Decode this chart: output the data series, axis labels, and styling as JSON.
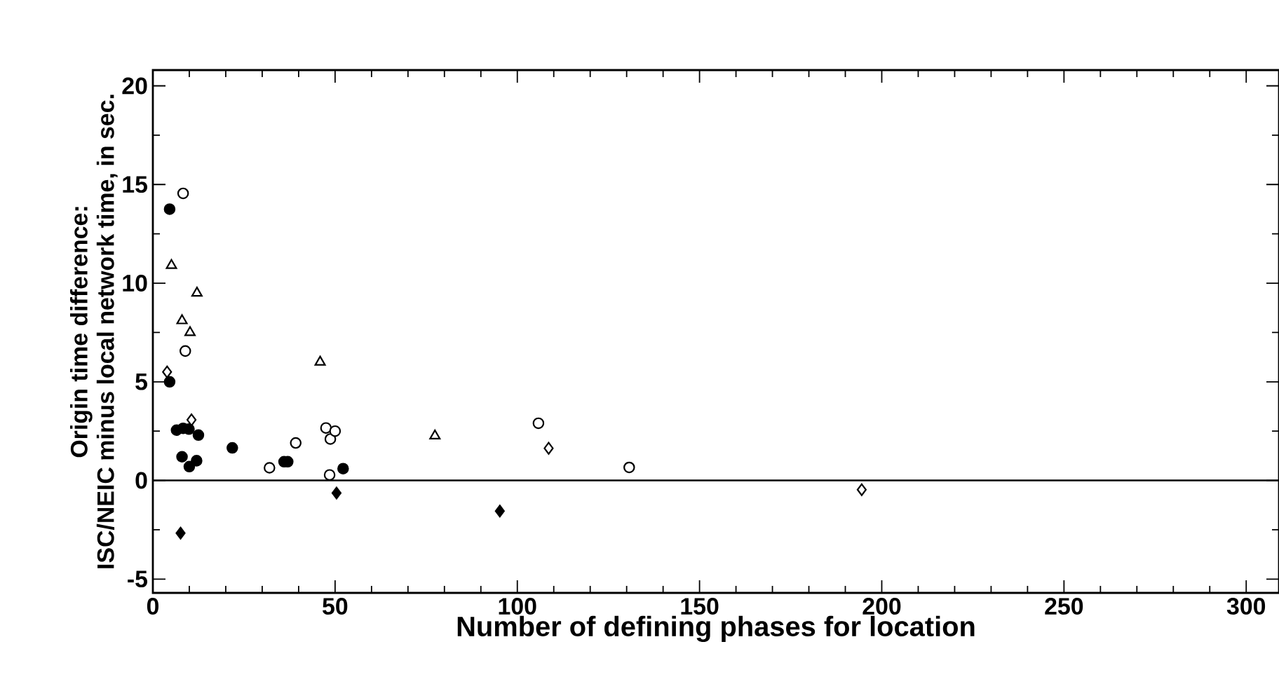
{
  "chart_data": {
    "type": "scatter",
    "xlabel": "Number of defining phases for location",
    "ylabel": "Origin time difference: ISC/NEIC minus local network time, in sec.",
    "xlim": [
      0,
      309
    ],
    "ylim": [
      -5.7,
      20.8
    ],
    "xticks": [
      0,
      50,
      100,
      150,
      200,
      250,
      300
    ],
    "yticks": [
      -5,
      0,
      5,
      10,
      15,
      20
    ],
    "grid": false,
    "ref_lines": [
      {
        "axis": "y",
        "value": 0,
        "color": "#000000"
      }
    ],
    "series": [
      {
        "marker": "circle",
        "color": "#000000",
        "x": [
          4.6,
          4.6,
          6.5,
          8.3,
          9.9,
          12.5,
          8,
          10,
          12,
          21.8,
          36,
          37,
          52.2
        ],
        "values": [
          13.75,
          5.0,
          2.55,
          2.64,
          2.6,
          2.3,
          1.2,
          0.7,
          1.0,
          1.65,
          0.95,
          0.95,
          0.6
        ]
      },
      {
        "marker": "circle",
        "color": "#ffffff",
        "x": [
          8.3,
          8.9,
          39.2,
          32,
          47.5,
          48.7,
          50,
          48.5,
          105.8,
          130.7
        ],
        "values": [
          14.55,
          6.56,
          1.9,
          0.64,
          2.66,
          2.1,
          2.5,
          0.28,
          2.9,
          0.66
        ]
      },
      {
        "marker": "triangle",
        "color": "#ffffff",
        "x": [
          5.1,
          12.1,
          8.0,
          10.2,
          45.9,
          77.4
        ],
        "values": [
          10.9,
          9.5,
          8.1,
          7.5,
          6.0,
          2.26
        ]
      },
      {
        "marker": "diamond",
        "color": "#ffffff",
        "x": [
          3.9,
          10.6,
          108.6,
          194.5
        ],
        "values": [
          5.5,
          3.07,
          1.63,
          -0.47
        ]
      },
      {
        "marker": "diamond",
        "color": "#000000",
        "x": [
          7.6,
          50.4,
          95.2
        ],
        "values": [
          -2.67,
          -0.64,
          -1.55
        ]
      }
    ]
  }
}
